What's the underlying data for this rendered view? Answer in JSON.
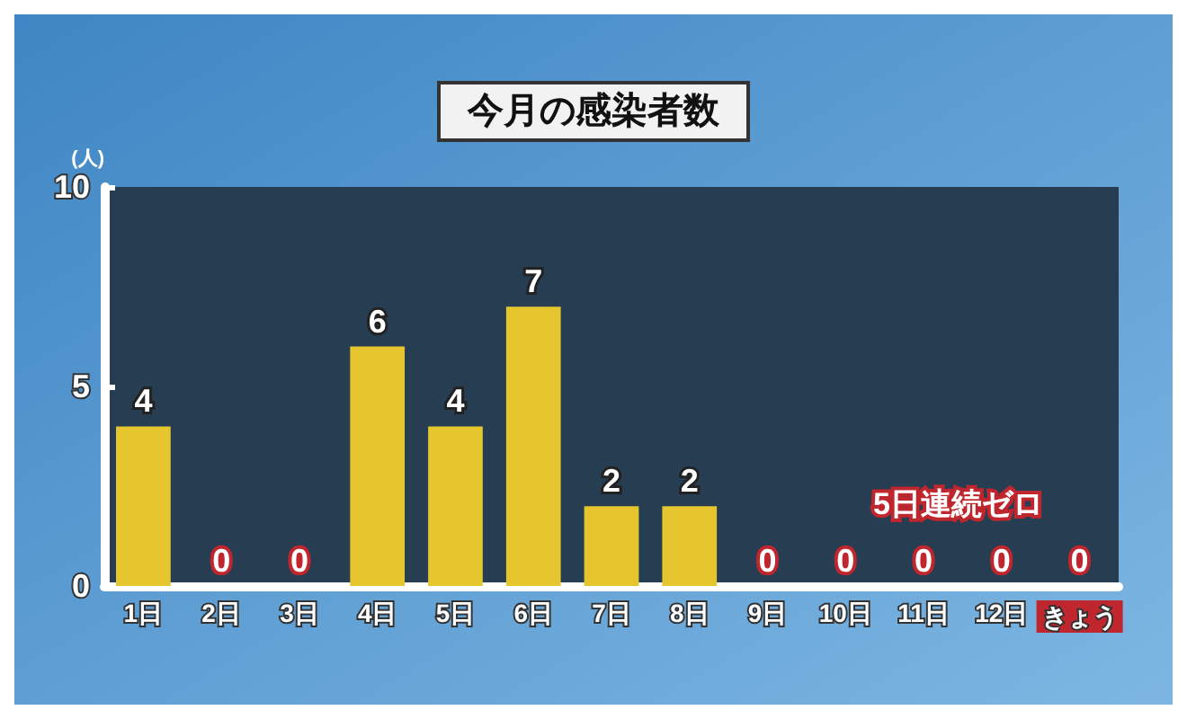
{
  "chart_data": {
    "type": "bar",
    "title": "今月の感染者数",
    "ylabel": "(人)",
    "categories": [
      "1日",
      "2日",
      "3日",
      "4日",
      "5日",
      "6日",
      "7日",
      "8日",
      "9日",
      "10日",
      "11日",
      "12日",
      "きょう"
    ],
    "values": [
      4,
      0,
      0,
      6,
      4,
      7,
      2,
      2,
      0,
      0,
      0,
      0,
      0
    ],
    "color": "#e6c62e",
    "ylim": [
      0,
      10
    ],
    "yticks": [
      0,
      5,
      10
    ],
    "grid": false,
    "data_labels": true,
    "annotations": [
      "5日連続ゼロ"
    ]
  }
}
